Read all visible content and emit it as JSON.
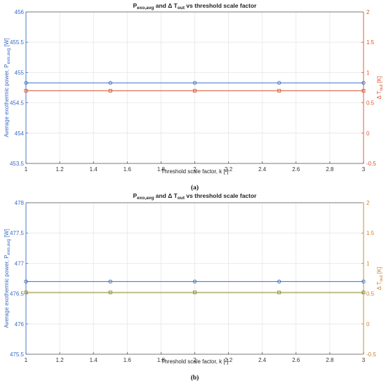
{
  "chart_data": [
    {
      "type": "line",
      "panel_label": "(a)",
      "title": "P",
      "title_sub": "exo,avg",
      "title_mid": " and Δ T",
      "title_sub2": "out",
      "title_end": " vs threshold scale factor",
      "xlabel": "Threshold scale factor, k [-]",
      "ylabel_left": "Average exothermic power, P",
      "ylabel_left_sub": "exo,avg",
      "ylabel_left_unit": " [W]",
      "ylabel_right": "Δ T",
      "ylabel_right_sub": "out",
      "ylabel_right_unit": " [K]",
      "xlim": [
        1,
        3
      ],
      "ylim_left": [
        453.5,
        456
      ],
      "ylim_right": [
        -0.5,
        2
      ],
      "xticks": [
        "1",
        "1.2",
        "1.4",
        "1.6",
        "1.8",
        "2",
        "2.2",
        "2.4",
        "2.6",
        "2.8",
        "3"
      ],
      "yticks_left": [
        "453.5",
        "454",
        "454.5",
        "455",
        "455.5",
        "456"
      ],
      "yticks_right": [
        "-0.5",
        "0",
        "0.5",
        "1",
        "1.5",
        "2"
      ],
      "grid": true,
      "left_color": "#3a6bc4",
      "right_color": "#d9532e",
      "series": [
        {
          "axis": "left",
          "color": "#3a6bc4",
          "marker": "circle",
          "x": [
            1,
            1.5,
            2,
            2.5,
            3
          ],
          "values": [
            454.83,
            454.83,
            454.83,
            454.83,
            454.83
          ]
        },
        {
          "axis": "right",
          "color": "#d9532e",
          "marker": "square",
          "x": [
            1,
            1.5,
            2,
            2.5,
            3
          ],
          "values": [
            0.7,
            0.7,
            0.7,
            0.7,
            0.7
          ]
        }
      ]
    },
    {
      "type": "line",
      "panel_label": "(b)",
      "title": "P",
      "title_sub": "exo,avg",
      "title_mid": " and Δ T",
      "title_sub2": "out",
      "title_end": " vs threshold scale factor",
      "xlabel": "Threshold scale factor, k [-]",
      "ylabel_left": "Average exothermic power, P",
      "ylabel_left_sub": "exo,avg",
      "ylabel_left_unit": " [W]",
      "ylabel_right": "Δ T",
      "ylabel_right_sub": "out",
      "ylabel_right_unit": " [K]",
      "xlim": [
        1,
        3
      ],
      "ylim_left": [
        475.5,
        478
      ],
      "ylim_right": [
        -0.5,
        2
      ],
      "xticks": [
        "1",
        "1.2",
        "1.4",
        "1.6",
        "1.8",
        "2",
        "2.2",
        "2.4",
        "2.6",
        "2.8",
        "3"
      ],
      "yticks_left": [
        "475.5",
        "476",
        "476.5",
        "477",
        "477.5",
        "478"
      ],
      "yticks_right": [
        "-0.5",
        "0",
        "0.5",
        "1",
        "1.5",
        "2"
      ],
      "grid": true,
      "left_color": "#3a6bc4",
      "right_color": "#c8822e",
      "series": [
        {
          "axis": "left",
          "color": "#3a6bc4",
          "marker": "circle",
          "x": [
            1,
            1.5,
            2,
            2.5,
            3
          ],
          "values": [
            476.7,
            476.7,
            476.7,
            476.7,
            476.7
          ]
        },
        {
          "axis": "right",
          "color": "#8a8a2a",
          "marker": "square",
          "x": [
            1,
            1.5,
            2,
            2.5,
            3
          ],
          "values": [
            0.52,
            0.52,
            0.52,
            0.52,
            0.52
          ]
        }
      ]
    }
  ]
}
